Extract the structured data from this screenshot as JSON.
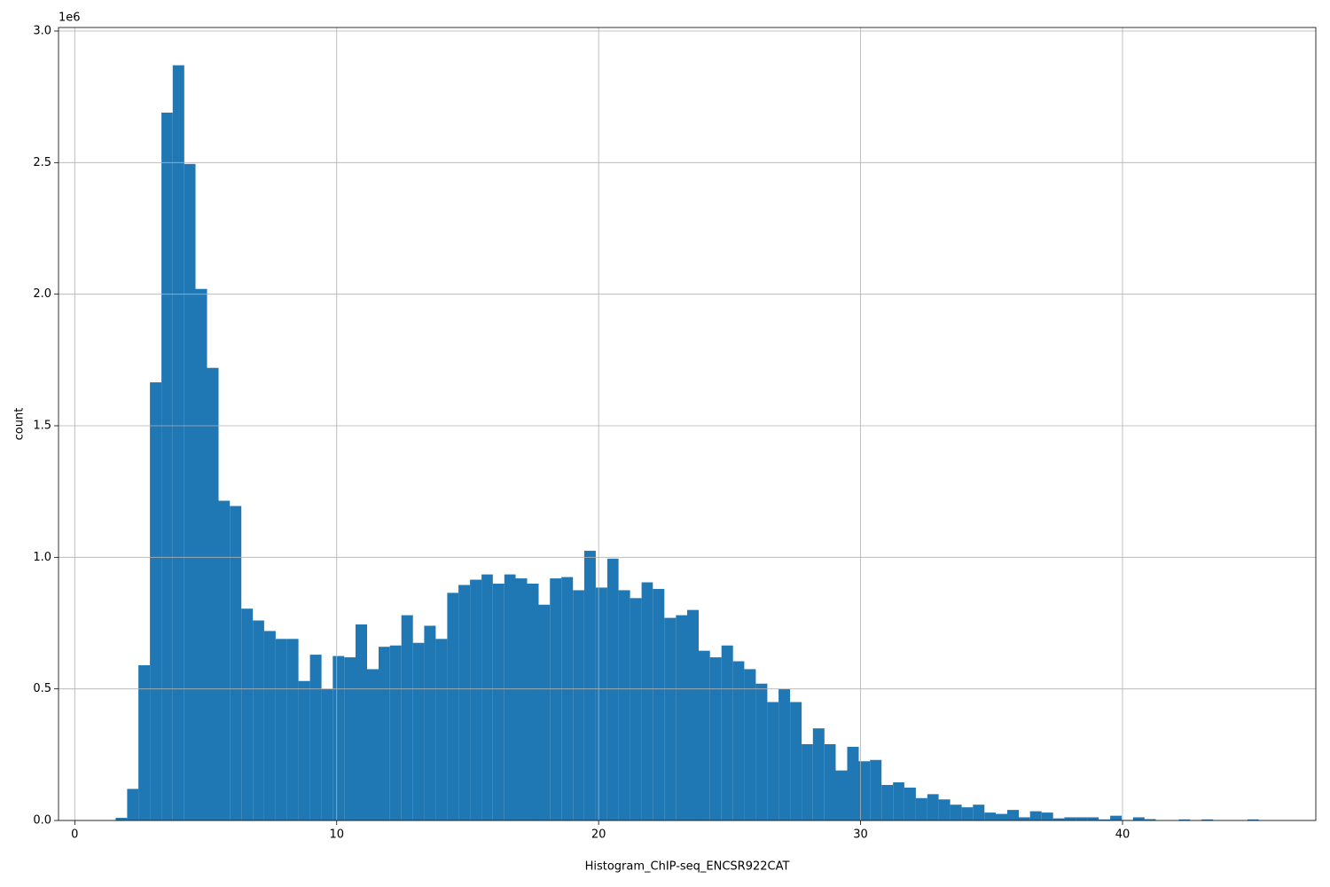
{
  "chart_data": {
    "type": "histogram",
    "x_label": "Histogram_ChIP-seq_ENCSR922CAT",
    "y_label": "count",
    "y_offset_label": "1e6",
    "color": "#1f77b4",
    "grid": true,
    "bins": [
      1.56,
      2.0,
      2.43,
      2.87,
      3.31,
      3.74,
      4.18,
      4.61,
      5.05,
      5.49,
      5.92,
      6.36,
      6.8,
      7.23,
      7.67,
      8.11,
      8.54,
      8.98,
      9.42,
      9.85,
      10.29,
      10.72,
      11.16,
      11.6,
      12.03,
      12.47,
      12.91,
      13.34,
      13.78,
      14.22,
      14.65,
      15.09,
      15.53,
      15.96,
      16.4,
      16.83,
      17.27,
      17.71,
      18.14,
      18.58,
      19.02,
      19.45,
      19.89,
      20.33,
      20.76,
      21.2,
      21.64,
      22.07,
      22.51,
      22.95,
      23.38,
      23.82,
      24.25,
      24.69,
      25.13,
      25.56,
      26.0,
      26.44,
      26.87,
      27.31,
      27.75,
      28.18,
      28.62,
      29.05,
      29.49,
      29.93,
      30.36,
      30.8,
      31.24,
      31.67,
      32.11,
      32.55,
      32.98,
      33.42,
      33.86,
      34.29,
      34.73,
      35.16,
      35.6,
      36.04,
      36.47,
      36.91,
      37.35,
      37.78,
      38.22,
      38.66,
      39.09,
      39.53,
      39.97,
      40.4,
      40.84,
      41.27,
      41.71,
      42.15,
      42.58,
      43.02,
      43.46,
      43.89,
      44.33,
      44.77,
      45.2
    ],
    "values": [
      10000,
      120000,
      590000,
      1665000,
      2690000,
      2870000,
      2495000,
      2020000,
      1720000,
      1215000,
      1195000,
      805000,
      760000,
      720000,
      690000,
      690000,
      530000,
      630000,
      500000,
      625000,
      620000,
      745000,
      575000,
      660000,
      665000,
      780000,
      675000,
      740000,
      690000,
      865000,
      895000,
      915000,
      935000,
      900000,
      935000,
      920000,
      900000,
      820000,
      920000,
      925000,
      875000,
      1025000,
      885000,
      995000,
      875000,
      845000,
      905000,
      880000,
      770000,
      780000,
      800000,
      645000,
      620000,
      665000,
      605000,
      575000,
      520000,
      450000,
      500000,
      450000,
      290000,
      350000,
      290000,
      190000,
      280000,
      225000,
      230000,
      135000,
      145000,
      125000,
      85000,
      100000,
      80000,
      60000,
      50000,
      60000,
      30000,
      25000,
      40000,
      12000,
      35000,
      30000,
      8000,
      12000,
      12000,
      12000,
      4000,
      18000,
      2000,
      12000,
      5000,
      1000,
      1000,
      4000,
      1000,
      4000,
      1000,
      1000,
      1000,
      4000
    ],
    "xlim": [
      -0.62,
      47.38
    ],
    "xticks": [
      0,
      10,
      20,
      30,
      40
    ],
    "ylim": [
      0,
      3013500
    ],
    "yticks": [
      {
        "value": 0,
        "label": "0.0"
      },
      {
        "value": 500000,
        "label": "0.5"
      },
      {
        "value": 1000000,
        "label": "1.0"
      },
      {
        "value": 1500000,
        "label": "1.5"
      },
      {
        "value": 2000000,
        "label": "2.0"
      },
      {
        "value": 2500000,
        "label": "2.5"
      },
      {
        "value": 3000000,
        "label": "3.0"
      }
    ]
  }
}
